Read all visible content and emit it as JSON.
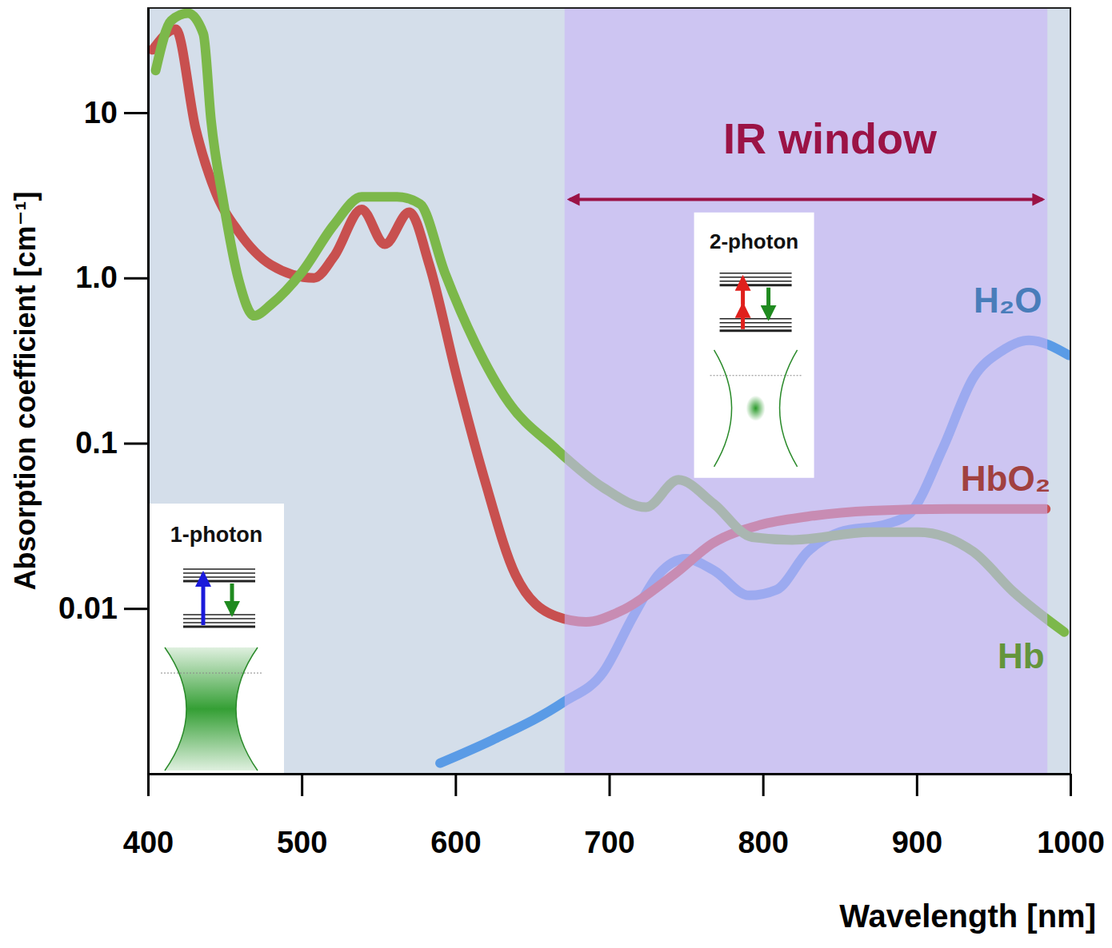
{
  "chart_data": {
    "type": "line",
    "xlabel": "Wavelength [nm]",
    "ylabel": "Absorption coefficient [cm⁻¹]",
    "log": "y",
    "xlim": [
      400,
      1000
    ],
    "xticks": [
      400,
      500,
      600,
      700,
      800,
      900,
      1000
    ],
    "ylim": [
      0.001,
      43
    ],
    "yticks": [
      0.01,
      0.1,
      {
        "value": 1,
        "label": "1.0"
      },
      10
    ],
    "series": [
      {
        "name": "H₂O",
        "color": "#5a9be6",
        "x": [
          590,
          624,
          670,
          696,
          716,
          732,
          750,
          768,
          791,
          809,
          829,
          850,
          881,
          896,
          917,
          937,
          955,
          973,
          999
        ],
        "values": [
          0.00116,
          0.0016,
          0.0027,
          0.0041,
          0.0091,
          0.016,
          0.02,
          0.017,
          0.012,
          0.013,
          0.022,
          0.029,
          0.0325,
          0.038,
          0.093,
          0.25,
          0.36,
          0.42,
          0.34
        ]
      },
      {
        "name": "HbO₂",
        "color": "#c8504f",
        "x": [
          403,
          418,
          431,
          444,
          459,
          480,
          508,
          521,
          539,
          554,
          570,
          583,
          601,
          619,
          639,
          665,
          685,
          706,
          742,
          768,
          798,
          829,
          870,
          922,
          984
        ],
        "values": [
          24,
          32,
          8,
          3.3,
          1.9,
          1.2,
          1.0,
          1.35,
          2.6,
          1.6,
          2.5,
          1.2,
          0.25,
          0.06,
          0.016,
          0.009,
          0.0083,
          0.0095,
          0.016,
          0.025,
          0.032,
          0.036,
          0.039,
          0.04,
          0.04
        ]
      },
      {
        "name": "Hb",
        "color": "#7cb84a",
        "x": [
          405,
          415,
          426,
          436,
          441,
          449,
          459,
          469,
          480,
          500,
          521,
          539,
          562,
          577,
          593,
          613,
          634,
          665,
          696,
          724,
          745,
          768,
          793,
          819,
          870,
          901,
          937,
          963,
          996
        ],
        "values": [
          18,
          36,
          40,
          30,
          9,
          2.9,
          0.97,
          0.59,
          0.69,
          1.08,
          2.1,
          3.1,
          3.1,
          2.8,
          1.08,
          0.4,
          0.18,
          0.093,
          0.054,
          0.041,
          0.06,
          0.043,
          0.027,
          0.026,
          0.029,
          0.029,
          0.022,
          0.0126,
          0.0072
        ]
      }
    ],
    "annotations": [
      {
        "text": "IR window",
        "x": [
          671,
          985
        ]
      }
    ],
    "insets": [
      {
        "text": "1-photon"
      },
      {
        "text": "2-photon"
      }
    ]
  }
}
